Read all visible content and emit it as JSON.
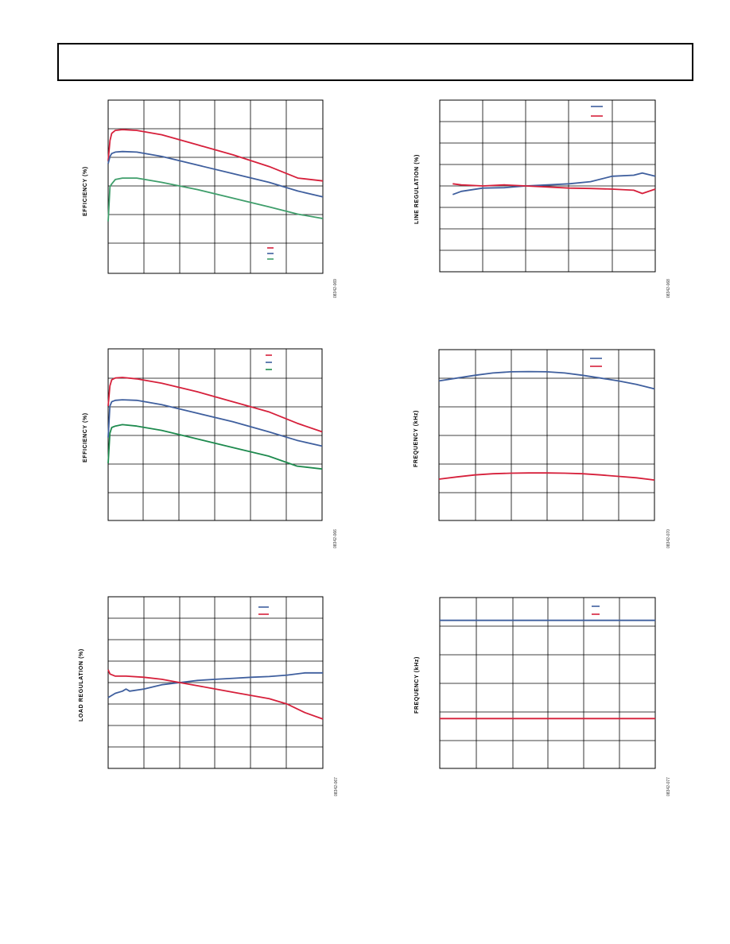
{
  "colors": {
    "red": "#d6203b",
    "blue": "#3f5f9e",
    "green_light": "#3f9e6b",
    "green_dark": "#1e8a4e",
    "grid": "#000000"
  },
  "chart_data": [
    {
      "type": "line",
      "ylabel": "EFFICIENCY (%)",
      "figure_code": "08342-069",
      "grid": true,
      "xlim": [
        0,
        6
      ],
      "ylim": [
        0,
        6
      ],
      "legend": "bottom-right",
      "series": [
        {
          "color_key": "red",
          "x": [
            0,
            0.05,
            0.1,
            0.2,
            0.4,
            0.8,
            1.5,
            2.5,
            3.5,
            4.5,
            5.3,
            6.0
          ],
          "y": [
            3.9,
            4.6,
            4.85,
            4.95,
            4.98,
            4.95,
            4.8,
            4.45,
            4.1,
            3.7,
            3.3,
            3.2
          ]
        },
        {
          "color_key": "blue",
          "x": [
            0,
            0.05,
            0.1,
            0.2,
            0.4,
            0.8,
            1.5,
            2.5,
            3.5,
            4.5,
            5.3,
            6.0
          ],
          "y": [
            3.8,
            4.05,
            4.15,
            4.2,
            4.22,
            4.2,
            4.05,
            3.75,
            3.45,
            3.15,
            2.85,
            2.65
          ]
        },
        {
          "color_key": "green_light",
          "x": [
            0,
            0.05,
            0.1,
            0.2,
            0.4,
            0.8,
            1.5,
            2.5,
            3.5,
            4.5,
            5.3,
            6.0
          ],
          "y": [
            1.8,
            3.0,
            3.1,
            3.25,
            3.3,
            3.3,
            3.15,
            2.9,
            2.6,
            2.3,
            2.05,
            1.9
          ]
        }
      ]
    },
    {
      "type": "line",
      "ylabel": "LINE REGULATION (%)",
      "figure_code": "08342-068",
      "grid": true,
      "xlim": [
        0,
        5
      ],
      "ylim": [
        0,
        8
      ],
      "legend": "top-right",
      "series": [
        {
          "color_key": "blue",
          "x": [
            0.3,
            0.5,
            1.0,
            1.5,
            2.0,
            2.5,
            3.0,
            3.5,
            4.0,
            4.5,
            4.7,
            5.0
          ],
          "y": [
            3.6,
            3.75,
            3.9,
            3.92,
            4.0,
            4.05,
            4.1,
            4.2,
            4.45,
            4.5,
            4.6,
            4.45
          ]
        },
        {
          "color_key": "red",
          "x": [
            0.3,
            0.5,
            1.0,
            1.5,
            2.0,
            2.5,
            3.0,
            3.5,
            4.0,
            4.5,
            4.7,
            5.0
          ],
          "y": [
            4.1,
            4.05,
            4.0,
            4.05,
            4.0,
            3.95,
            3.9,
            3.88,
            3.85,
            3.8,
            3.65,
            3.85
          ]
        }
      ]
    },
    {
      "type": "line",
      "ylabel": "EFFICIENCY (%)",
      "figure_code": "08342-066",
      "grid": true,
      "xlim": [
        0,
        6
      ],
      "ylim": [
        0,
        6
      ],
      "legend": "top-right",
      "series": [
        {
          "color_key": "red",
          "x": [
            0,
            0.05,
            0.1,
            0.2,
            0.4,
            0.8,
            1.5,
            2.5,
            3.5,
            4.5,
            5.3,
            6.0
          ],
          "y": [
            4.0,
            4.7,
            4.92,
            4.98,
            5.0,
            4.95,
            4.8,
            4.5,
            4.15,
            3.8,
            3.4,
            3.1
          ]
        },
        {
          "color_key": "blue",
          "x": [
            0,
            0.05,
            0.1,
            0.2,
            0.4,
            0.8,
            1.5,
            2.5,
            3.5,
            4.5,
            5.3,
            6.0
          ],
          "y": [
            2.9,
            4.0,
            4.15,
            4.2,
            4.22,
            4.2,
            4.05,
            3.75,
            3.45,
            3.1,
            2.8,
            2.6
          ]
        },
        {
          "color_key": "green_dark",
          "x": [
            0,
            0.05,
            0.1,
            0.2,
            0.4,
            0.8,
            1.5,
            2.5,
            3.5,
            4.5,
            5.3,
            6.0
          ],
          "y": [
            2.0,
            3.05,
            3.25,
            3.3,
            3.35,
            3.3,
            3.15,
            2.85,
            2.55,
            2.25,
            1.9,
            1.8
          ]
        }
      ]
    },
    {
      "type": "line",
      "ylabel": "FREQUENCY (kHz)",
      "figure_code": "08342-070",
      "grid": true,
      "xlim": [
        0,
        6
      ],
      "ylim": [
        0,
        6
      ],
      "legend": "top-right",
      "series": [
        {
          "color_key": "blue",
          "x": [
            0,
            0.5,
            1,
            1.5,
            2,
            2.5,
            3,
            3.5,
            4,
            4.5,
            5,
            5.5,
            6
          ],
          "y": [
            4.9,
            5.0,
            5.1,
            5.18,
            5.22,
            5.23,
            5.22,
            5.18,
            5.1,
            5.0,
            4.9,
            4.78,
            4.62
          ]
        },
        {
          "color_key": "red",
          "x": [
            0,
            0.5,
            1,
            1.5,
            2,
            2.5,
            3,
            3.5,
            4,
            4.5,
            5,
            5.5,
            6
          ],
          "y": [
            1.45,
            1.53,
            1.6,
            1.64,
            1.66,
            1.67,
            1.67,
            1.66,
            1.64,
            1.6,
            1.55,
            1.5,
            1.42
          ]
        }
      ]
    },
    {
      "type": "line",
      "ylabel": "LOAD REGULATION (%)",
      "figure_code": "08342-067",
      "grid": true,
      "xlim": [
        0,
        6
      ],
      "ylim": [
        0,
        8
      ],
      "legend": "top-right",
      "series": [
        {
          "color_key": "blue",
          "x": [
            0,
            0.2,
            0.4,
            0.5,
            0.6,
            1.0,
            1.5,
            2.0,
            2.5,
            3.0,
            3.5,
            4.0,
            4.5,
            5.0,
            5.5,
            6.0
          ],
          "y": [
            3.3,
            3.5,
            3.6,
            3.7,
            3.6,
            3.7,
            3.9,
            4.0,
            4.1,
            4.15,
            4.2,
            4.25,
            4.28,
            4.35,
            4.45,
            4.45
          ]
        },
        {
          "color_key": "red",
          "x": [
            0,
            0.05,
            0.2,
            0.5,
            1.0,
            1.5,
            2.0,
            2.5,
            3.0,
            3.5,
            4.0,
            4.5,
            5.0,
            5.5,
            6.0
          ],
          "y": [
            4.6,
            4.4,
            4.3,
            4.3,
            4.25,
            4.15,
            4.0,
            3.85,
            3.7,
            3.55,
            3.4,
            3.25,
            3.0,
            2.6,
            2.3
          ]
        }
      ]
    },
    {
      "type": "line",
      "ylabel": "FREQUENCY (kHz)",
      "figure_code": "08342-077",
      "grid": true,
      "xlim": [
        0,
        6
      ],
      "ylim": [
        0,
        6
      ],
      "legend": "top-right",
      "series": [
        {
          "color_key": "blue",
          "x": [
            0,
            6
          ],
          "y": [
            5.2,
            5.2
          ]
        },
        {
          "color_key": "red",
          "x": [
            0,
            6
          ],
          "y": [
            1.75,
            1.75
          ]
        }
      ]
    }
  ]
}
